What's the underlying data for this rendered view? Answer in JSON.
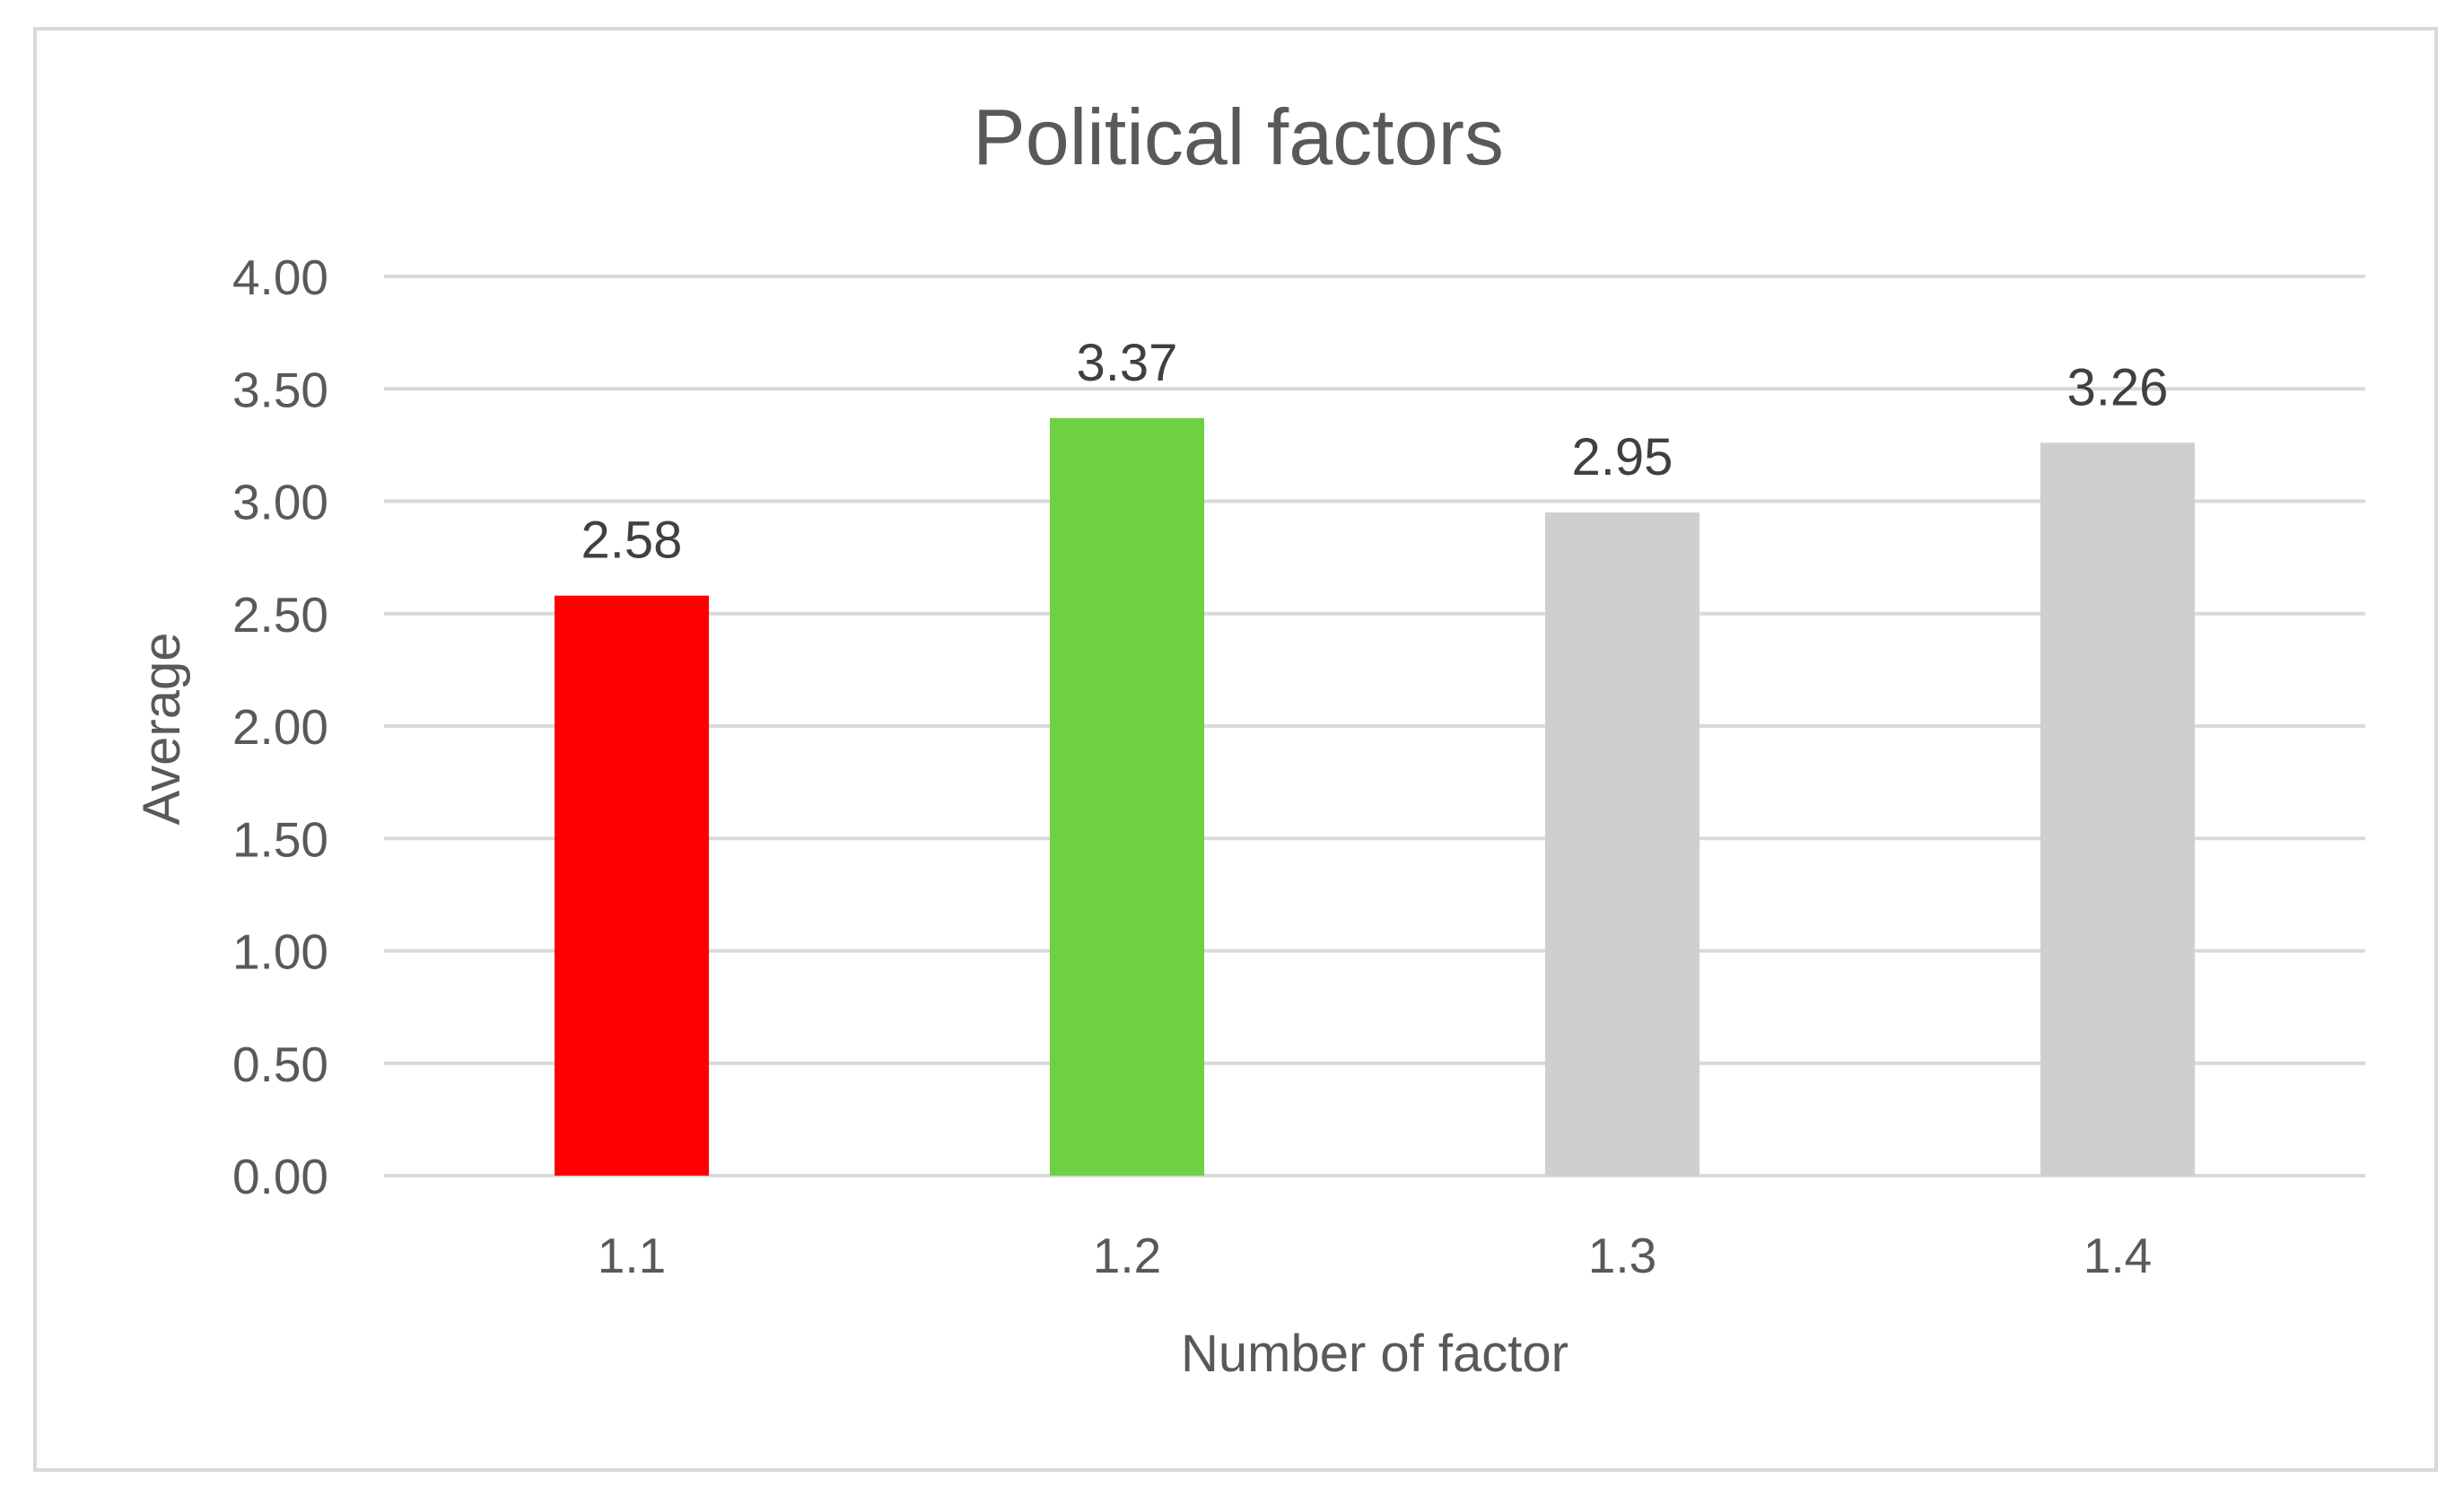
{
  "chart_data": {
    "type": "bar",
    "title": "Political factors",
    "xlabel": "Number of factor",
    "ylabel": "Average",
    "categories": [
      "1.1",
      "1.2",
      "1.3",
      "1.4"
    ],
    "values": [
      2.58,
      3.37,
      2.95,
      3.26
    ],
    "value_labels": [
      "2.58",
      "3.37",
      "2.95",
      "3.26"
    ],
    "bar_colors": [
      "#ff0000",
      "#6dd143",
      "#d0cece",
      "#d0cece"
    ],
    "ylim": [
      0,
      4
    ],
    "yticks": [
      0,
      0.5,
      1,
      1.5,
      2,
      2.5,
      3,
      3.5,
      4
    ],
    "ytick_labels": [
      "0.00",
      "0.50",
      "1.00",
      "1.50",
      "2.00",
      "2.50",
      "3.00",
      "3.50",
      "4.00"
    ],
    "grid": true,
    "legend": "none"
  }
}
